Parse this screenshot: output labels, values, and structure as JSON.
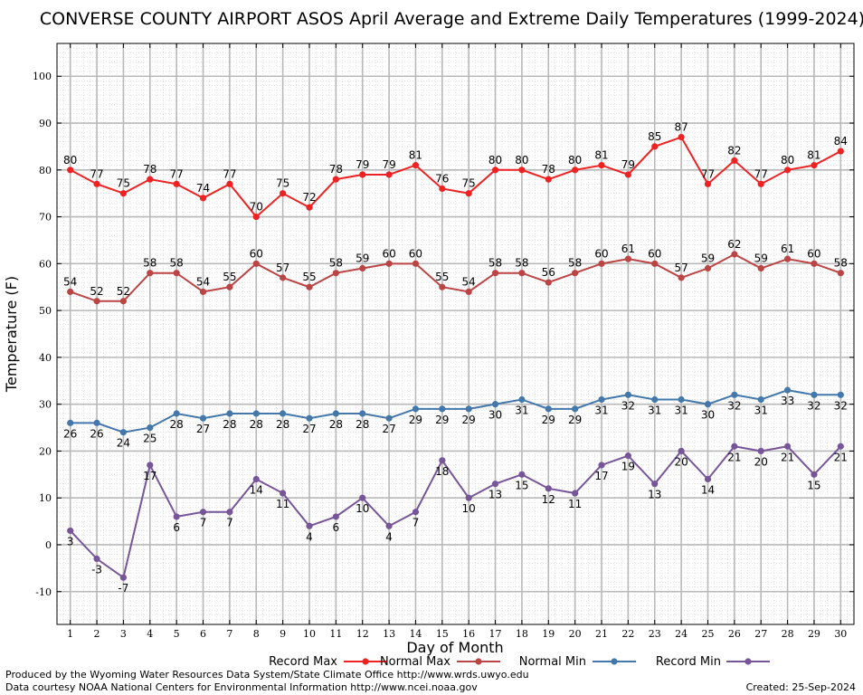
{
  "chart_data": {
    "type": "line",
    "title": "CONVERSE COUNTY AIRPORT ASOS April Average and Extreme Daily Temperatures (1999-2024)",
    "xlabel": "Day of Month",
    "ylabel": "Temperature (F)",
    "ylim": [
      -17,
      107
    ],
    "xlim": [
      0.5,
      30.5
    ],
    "yticks": [
      -10,
      0,
      10,
      20,
      30,
      40,
      50,
      60,
      70,
      80,
      90,
      100
    ],
    "x": [
      1,
      2,
      3,
      4,
      5,
      6,
      7,
      8,
      9,
      10,
      11,
      12,
      13,
      14,
      15,
      16,
      17,
      18,
      19,
      20,
      21,
      22,
      23,
      24,
      25,
      26,
      27,
      28,
      29,
      30
    ],
    "grid": true,
    "legend_position": "bottom",
    "series": [
      {
        "name": "Record Max",
        "color": "#ee2222",
        "label_pos": "above",
        "values": [
          80,
          77,
          75,
          78,
          77,
          74,
          77,
          70,
          75,
          72,
          78,
          79,
          79,
          81,
          76,
          75,
          80,
          80,
          78,
          80,
          81,
          79,
          85,
          87,
          77,
          82,
          77,
          80,
          81,
          84
        ]
      },
      {
        "name": "Normal Max",
        "color": "#bb4444",
        "label_pos": "above",
        "values": [
          54,
          52,
          52,
          58,
          58,
          54,
          55,
          60,
          57,
          55,
          58,
          59,
          60,
          60,
          55,
          54,
          58,
          58,
          56,
          58,
          60,
          61,
          60,
          57,
          59,
          62,
          59,
          61,
          60,
          58
        ]
      },
      {
        "name": "Normal Min",
        "color": "#4477aa",
        "label_pos": "below",
        "values": [
          26,
          26,
          24,
          25,
          28,
          27,
          28,
          28,
          28,
          27,
          28,
          28,
          27,
          29,
          29,
          29,
          30,
          31,
          29,
          29,
          31,
          32,
          31,
          31,
          30,
          32,
          31,
          33,
          32,
          32
        ]
      },
      {
        "name": "Record Min",
        "color": "#775599",
        "label_pos": "below",
        "values": [
          3,
          -3,
          -7,
          17,
          6,
          7,
          7,
          14,
          11,
          4,
          6,
          10,
          4,
          7,
          18,
          10,
          13,
          15,
          12,
          11,
          17,
          19,
          13,
          20,
          14,
          21,
          20,
          21,
          15,
          21
        ]
      }
    ]
  },
  "footer": {
    "line1": "Produced by the Wyoming Water Resources Data System/State Climate Office http://www.wrds.uwyo.edu",
    "line2": "Data courtesy NOAA National Centers for Environmental Information http://www.ncei.noaa.gov",
    "created": "Created:  25-Sep-2024"
  }
}
